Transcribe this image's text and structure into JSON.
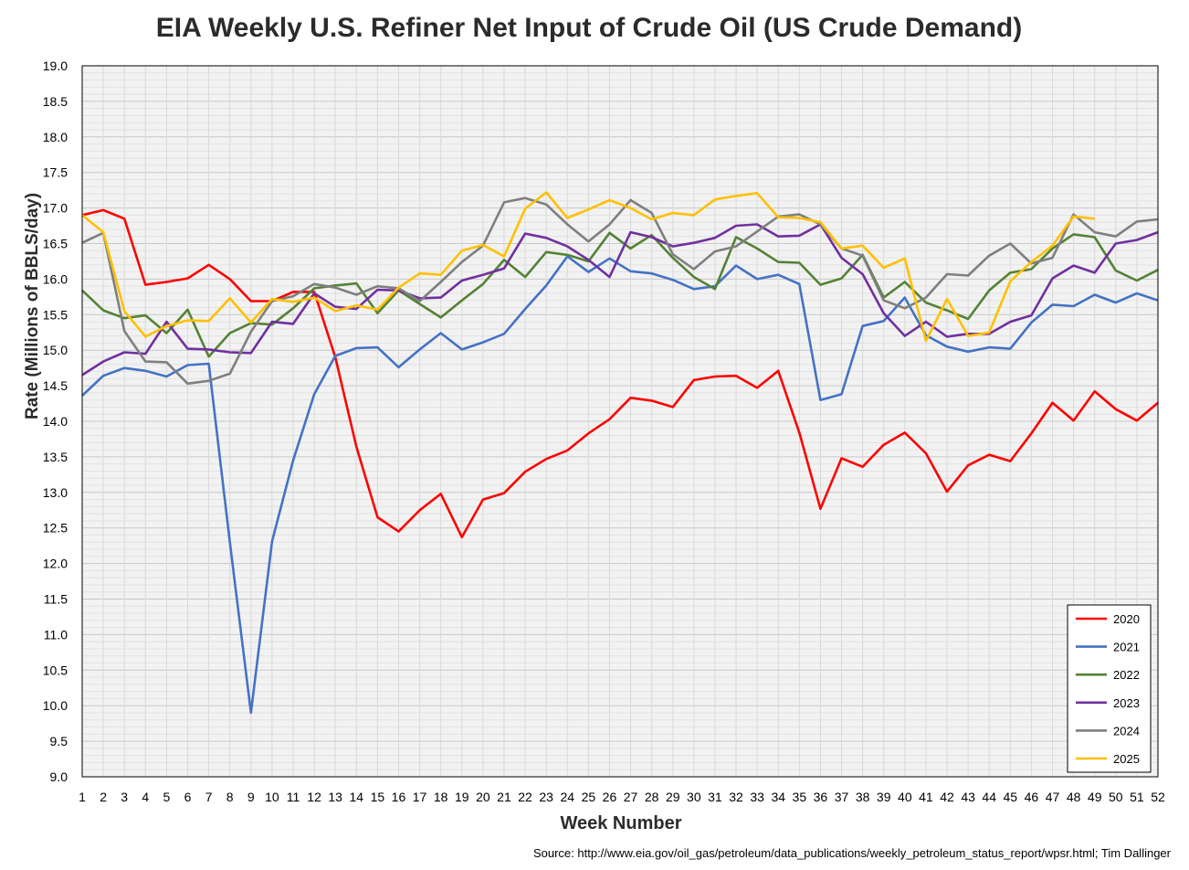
{
  "chart_data": {
    "type": "line",
    "title": "EIA Weekly U.S. Refiner Net Input of Crude Oil (US Crude Demand)",
    "xlabel": "Week Number",
    "ylabel": "Rate (Millions of BBLS/day)",
    "ylim": [
      9.0,
      19.0
    ],
    "xlim": [
      1,
      52
    ],
    "y_ticks": [
      "9.0",
      "9.5",
      "10.0",
      "10.5",
      "11.0",
      "11.5",
      "12.0",
      "12.5",
      "13.0",
      "13.5",
      "14.0",
      "14.5",
      "15.0",
      "15.5",
      "16.0",
      "16.5",
      "17.0",
      "17.5",
      "18.0",
      "18.5",
      "19.0"
    ],
    "x": [
      1,
      2,
      3,
      4,
      5,
      6,
      7,
      8,
      9,
      10,
      11,
      12,
      13,
      14,
      15,
      16,
      17,
      18,
      19,
      20,
      21,
      22,
      23,
      24,
      25,
      26,
      27,
      28,
      29,
      30,
      31,
      32,
      33,
      34,
      35,
      36,
      37,
      38,
      39,
      40,
      41,
      42,
      43,
      44,
      45,
      46,
      47,
      48,
      49,
      50,
      51,
      52
    ],
    "grid": true,
    "legend_position": "bottom-right",
    "series": [
      {
        "name": "2020",
        "color": "#ff0000",
        "values": [
          16.9,
          16.97,
          16.85,
          15.92,
          15.96,
          16.01,
          16.2,
          16.0,
          15.69,
          15.69,
          15.82,
          15.82,
          14.9,
          13.64,
          12.65,
          12.45,
          12.75,
          12.98,
          12.37,
          12.9,
          12.99,
          13.29,
          13.47,
          13.59,
          13.83,
          14.03,
          14.33,
          14.29,
          14.2,
          14.58,
          14.63,
          14.64,
          14.47,
          14.71,
          13.84,
          12.77,
          13.48,
          13.36,
          13.67,
          13.84,
          13.55,
          13.01,
          13.38,
          13.53,
          13.44,
          13.83,
          14.26,
          14.01,
          14.42,
          14.17,
          14.01,
          14.26
        ]
      },
      {
        "name": "2021",
        "color": "#4472c4",
        "values": [
          14.36,
          14.64,
          14.75,
          14.71,
          14.63,
          14.79,
          14.81,
          12.3,
          9.9,
          12.31,
          13.45,
          14.38,
          14.92,
          15.03,
          15.04,
          14.76,
          15.01,
          15.24,
          15.01,
          15.11,
          15.23,
          15.58,
          15.91,
          16.32,
          16.1,
          16.29,
          16.11,
          16.08,
          15.99,
          15.86,
          15.9,
          16.19,
          16.0,
          16.06,
          15.93,
          14.3,
          14.38,
          15.34,
          15.41,
          15.74,
          15.21,
          15.05,
          14.98,
          15.04,
          15.02,
          15.39,
          15.64,
          15.62,
          15.78,
          15.67,
          15.8,
          15.7
        ]
      },
      {
        "name": "2022",
        "color": "#548235",
        "values": [
          15.84,
          15.56,
          15.45,
          15.49,
          15.24,
          15.57,
          14.91,
          15.24,
          15.38,
          15.36,
          15.59,
          15.87,
          15.91,
          15.94,
          15.52,
          15.84,
          15.65,
          15.46,
          15.7,
          15.93,
          16.27,
          16.03,
          16.38,
          16.34,
          16.25,
          16.65,
          16.43,
          16.62,
          16.3,
          16.03,
          15.86,
          16.59,
          16.43,
          16.24,
          16.23,
          15.92,
          16.01,
          16.34,
          15.74,
          15.96,
          15.67,
          15.56,
          15.44,
          15.84,
          16.09,
          16.14,
          16.43,
          16.63,
          16.59,
          16.12,
          15.98,
          16.13
        ]
      },
      {
        "name": "2023",
        "color": "#7030a0",
        "values": [
          14.65,
          14.84,
          14.97,
          14.95,
          15.4,
          15.02,
          15.01,
          14.97,
          14.96,
          15.4,
          15.37,
          15.8,
          15.61,
          15.58,
          15.85,
          15.84,
          15.73,
          15.74,
          15.98,
          16.06,
          16.15,
          16.64,
          16.58,
          16.46,
          16.27,
          16.03,
          16.66,
          16.59,
          16.46,
          16.51,
          16.58,
          16.75,
          16.77,
          16.6,
          16.61,
          16.77,
          16.3,
          16.07,
          15.52,
          15.2,
          15.4,
          15.19,
          15.23,
          15.23,
          15.4,
          15.49,
          16.01,
          16.19,
          16.09,
          16.5,
          16.55,
          16.66
        ]
      },
      {
        "name": "2024",
        "color": "#7f7f7f",
        "values": [
          16.51,
          16.65,
          15.27,
          14.84,
          14.83,
          14.53,
          14.57,
          14.67,
          15.26,
          15.69,
          15.76,
          15.93,
          15.88,
          15.78,
          15.9,
          15.87,
          15.69,
          15.96,
          16.24,
          16.47,
          17.08,
          17.14,
          17.05,
          16.77,
          16.53,
          16.77,
          17.11,
          16.93,
          16.35,
          16.14,
          16.39,
          16.46,
          16.67,
          16.88,
          16.91,
          16.77,
          16.43,
          16.33,
          15.7,
          15.59,
          15.74,
          16.07,
          16.05,
          16.33,
          16.5,
          16.22,
          16.3,
          16.91,
          16.66,
          16.6,
          16.81,
          16.84
        ]
      },
      {
        "name": "2025",
        "color": "#ffc000",
        "values": [
          16.9,
          16.66,
          15.55,
          15.19,
          15.34,
          15.42,
          15.41,
          15.73,
          15.39,
          15.72,
          15.68,
          15.74,
          15.55,
          15.63,
          15.57,
          15.88,
          16.08,
          16.06,
          16.4,
          16.48,
          16.32,
          16.99,
          17.22,
          16.86,
          16.98,
          17.11,
          17.0,
          16.84,
          16.93,
          16.9,
          17.12,
          17.17,
          17.21,
          16.87,
          16.86,
          16.8,
          16.43,
          16.47,
          16.16,
          16.29,
          15.13,
          15.72,
          15.2,
          15.25,
          15.97,
          16.24,
          16.47,
          16.88,
          16.85,
          null,
          null,
          null
        ]
      }
    ]
  },
  "source_text": "Source: http://www.eia.gov/oil_gas/petroleum/data_publications/weekly_petroleum_status_report/wpsr.html; Tim Dallinger"
}
